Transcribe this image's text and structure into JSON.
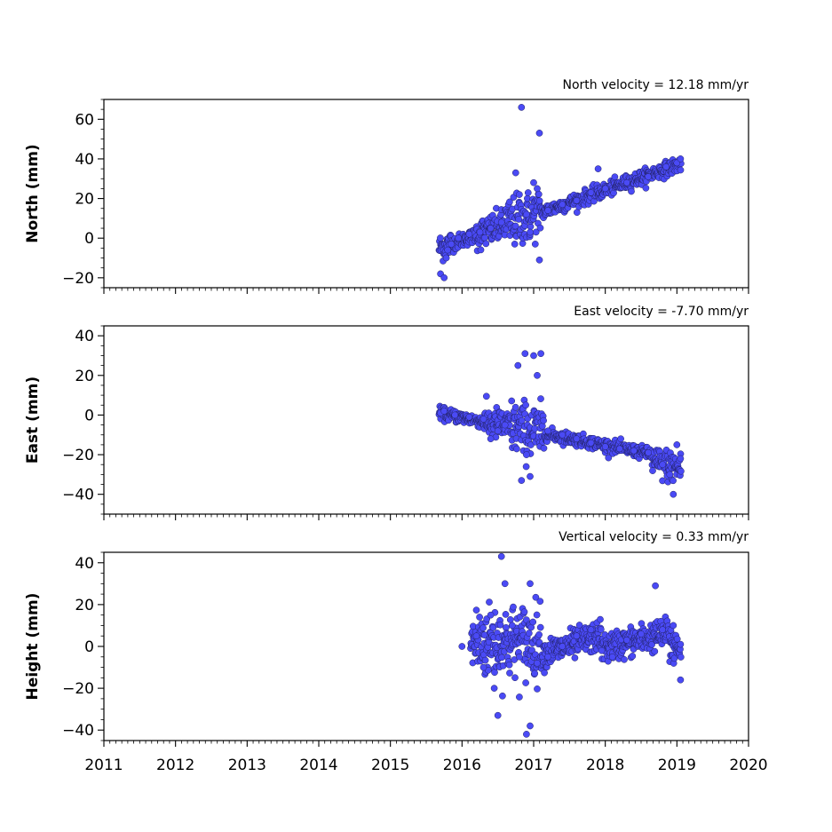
{
  "chart_data": [
    {
      "type": "scatter",
      "title": "North velocity = 12.18 mm/yr",
      "xlabel": "",
      "ylabel": "North (mm)",
      "xlim": [
        2011,
        2020
      ],
      "ylim": [
        -25,
        70
      ],
      "yticks": [
        "60",
        "40",
        "20",
        "0",
        "−20"
      ],
      "ytick_values": [
        60,
        40,
        20,
        0,
        -20
      ],
      "color": "#4a4af5",
      "edge_color": "#222266",
      "series": [
        {
          "points": [
            [
              2015.7,
              -18
            ],
            [
              2015.75,
              -20
            ],
            [
              2015.78,
              -10
            ],
            [
              2015.8,
              -6
            ],
            [
              2015.85,
              -3
            ],
            [
              2015.95,
              0
            ],
            [
              2016.1,
              2
            ],
            [
              2016.25,
              3
            ],
            [
              2016.4,
              5
            ],
            [
              2016.55,
              8
            ],
            [
              2016.75,
              33
            ],
            [
              2016.8,
              22
            ],
            [
              2016.83,
              66
            ],
            [
              2016.9,
              12
            ],
            [
              2016.95,
              3
            ],
            [
              2017.0,
              28
            ],
            [
              2017.05,
              25
            ],
            [
              2017.08,
              53
            ],
            [
              2017.08,
              -11
            ],
            [
              2017.2,
              14
            ],
            [
              2017.4,
              17
            ],
            [
              2017.6,
              19
            ],
            [
              2017.8,
              23
            ],
            [
              2017.9,
              35
            ],
            [
              2018.0,
              25
            ],
            [
              2018.3,
              28
            ],
            [
              2018.6,
              31
            ],
            [
              2018.85,
              36
            ],
            [
              2019.0,
              38
            ],
            [
              2019.05,
              40
            ]
          ]
        }
      ]
    },
    {
      "type": "scatter",
      "title": "East velocity = -7.70 mm/yr",
      "xlabel": "",
      "ylabel": "East (mm)",
      "xlim": [
        2011,
        2020
      ],
      "ylim": [
        -50,
        45
      ],
      "yticks": [
        "40",
        "20",
        "0",
        "−20",
        "−40"
      ],
      "ytick_values": [
        40,
        20,
        0,
        -20,
        -40
      ],
      "color": "#4a4af5",
      "edge_color": "#222266",
      "series": [
        {
          "points": [
            [
              2015.7,
              1
            ],
            [
              2015.75,
              2
            ],
            [
              2015.9,
              0
            ],
            [
              2016.1,
              -1
            ],
            [
              2016.3,
              -2
            ],
            [
              2016.4,
              -12
            ],
            [
              2016.5,
              -8
            ],
            [
              2016.6,
              -5
            ],
            [
              2016.78,
              25
            ],
            [
              2016.83,
              -33
            ],
            [
              2016.88,
              31
            ],
            [
              2016.9,
              -20
            ],
            [
              2016.95,
              -31
            ],
            [
              2017.0,
              30
            ],
            [
              2017.05,
              20
            ],
            [
              2017.1,
              31
            ],
            [
              2017.2,
              -8
            ],
            [
              2017.4,
              -10
            ],
            [
              2017.6,
              -12
            ],
            [
              2017.8,
              -14
            ],
            [
              2018.0,
              -16
            ],
            [
              2018.2,
              -17
            ],
            [
              2018.4,
              -18
            ],
            [
              2018.6,
              -19
            ],
            [
              2018.8,
              -25
            ],
            [
              2018.9,
              -30
            ],
            [
              2018.95,
              -40
            ],
            [
              2019.0,
              -15
            ],
            [
              2019.05,
              -22
            ]
          ]
        }
      ]
    },
    {
      "type": "scatter",
      "title": "Vertical velocity = 0.33 mm/yr",
      "xlabel": "",
      "ylabel": "Height (mm)",
      "xlim": [
        2011,
        2020
      ],
      "ylim": [
        -45,
        45
      ],
      "yticks": [
        "40",
        "20",
        "0",
        "−20",
        "−40"
      ],
      "ytick_values": [
        40,
        20,
        0,
        -20,
        -40
      ],
      "xticks": [
        "2011",
        "2012",
        "2013",
        "2014",
        "2015",
        "2016",
        "2017",
        "2018",
        "2019",
        "2020"
      ],
      "xtick_values": [
        2011,
        2012,
        2013,
        2014,
        2015,
        2016,
        2017,
        2018,
        2019,
        2020
      ],
      "color": "#4a4af5",
      "edge_color": "#222266",
      "series": [
        {
          "points": [
            [
              2016.0,
              0
            ],
            [
              2016.2,
              5
            ],
            [
              2016.3,
              -10
            ],
            [
              2016.4,
              15
            ],
            [
              2016.45,
              -20
            ],
            [
              2016.5,
              -33
            ],
            [
              2016.55,
              43
            ],
            [
              2016.6,
              30
            ],
            [
              2016.7,
              10
            ],
            [
              2016.8,
              -5
            ],
            [
              2016.9,
              -42
            ],
            [
              2016.95,
              -38
            ],
            [
              2016.95,
              30
            ],
            [
              2017.05,
              -8
            ],
            [
              2017.2,
              -5
            ],
            [
              2017.4,
              0
            ],
            [
              2017.6,
              5
            ],
            [
              2017.8,
              8
            ],
            [
              2017.95,
              -2
            ],
            [
              2018.1,
              -5
            ],
            [
              2018.3,
              3
            ],
            [
              2018.5,
              6
            ],
            [
              2018.7,
              29
            ],
            [
              2018.8,
              8
            ],
            [
              2018.95,
              10
            ],
            [
              2019.05,
              -16
            ]
          ]
        }
      ]
    }
  ]
}
